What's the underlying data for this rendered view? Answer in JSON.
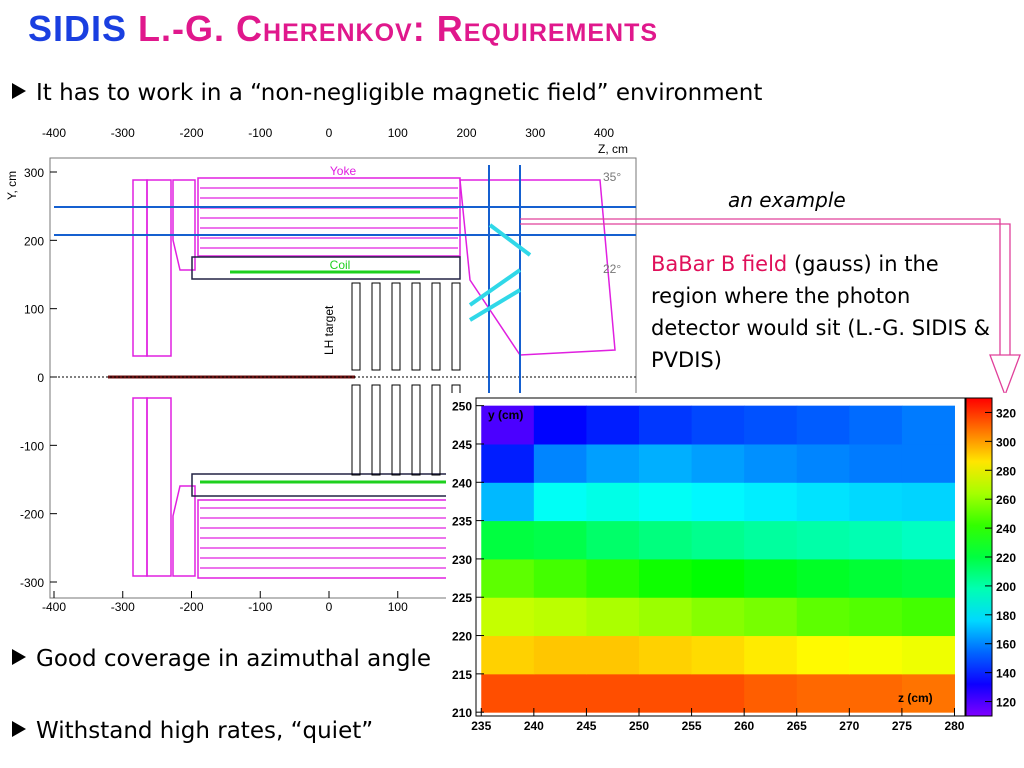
{
  "title": {
    "lead": "SIDIS",
    "rest": "L.-G. Cherenkov: Requirements"
  },
  "bullets": [
    "It has to work in a “non-negligible magnetic field” environment",
    "Good coverage in azimuthal angle",
    "Withstand high rates, “quiet”"
  ],
  "annotation": "an example",
  "description": {
    "highlight": "BaBar B field",
    "text": "(gauss) in the region where the photon detector would sit (L.-G. SIDIS & PVDIS)"
  },
  "detector_plot": {
    "x_label": "Z, cm",
    "y_label": "Y, cm",
    "xlim": [
      -405,
      450
    ],
    "ylim": [
      -318,
      320
    ],
    "xticks": [
      -400,
      -300,
      -200,
      -100,
      0,
      100,
      200,
      300,
      400
    ],
    "yticks": [
      300,
      200,
      100,
      0,
      -100,
      -200,
      -300
    ],
    "labels": {
      "yoke": "Yoke",
      "coil": "Coil",
      "target": "LH target",
      "angle_outer": "35°",
      "angle_inner": "22°"
    }
  },
  "heatmap": {
    "x_label": "z (cm)",
    "y_label": "y (cm)",
    "xlim": [
      234.5,
      281
    ],
    "ylim": [
      209.5,
      251
    ],
    "xticks": [
      235,
      240,
      245,
      250,
      255,
      260,
      265,
      270,
      275,
      280
    ],
    "yticks": [
      210,
      215,
      220,
      225,
      230,
      235,
      240,
      245,
      250
    ],
    "zbins": [
      235,
      240,
      245,
      250,
      255,
      260,
      265,
      270,
      275,
      280
    ],
    "ybins": [
      210,
      215,
      220,
      225,
      230,
      235,
      240,
      245,
      250
    ],
    "values": [
      [
        315,
        315,
        315,
        315,
        315,
        312,
        310,
        310,
        308
      ],
      [
        290,
        292,
        292,
        290,
        288,
        285,
        282,
        280,
        278
      ],
      [
        270,
        268,
        265,
        262,
        258,
        255,
        250,
        248,
        245
      ],
      [
        250,
        245,
        240,
        235,
        232,
        228,
        225,
        222,
        220
      ],
      [
        220,
        218,
        212,
        208,
        205,
        202,
        200,
        198,
        195
      ],
      [
        170,
        185,
        188,
        185,
        182,
        180,
        178,
        176,
        175
      ],
      [
        140,
        160,
        165,
        168,
        165,
        162,
        160,
        158,
        158
      ],
      [
        120,
        135,
        140,
        145,
        148,
        150,
        152,
        155,
        158
      ]
    ],
    "zlim": [
      110,
      330
    ],
    "zticks": [
      120,
      140,
      160,
      180,
      200,
      220,
      240,
      260,
      280,
      300,
      320
    ]
  }
}
